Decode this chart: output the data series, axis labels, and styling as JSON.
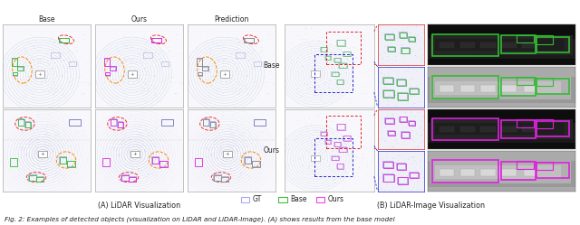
{
  "fig_width": 6.4,
  "fig_height": 2.49,
  "dpi": 100,
  "background_color": "#ffffff",
  "panel_A_title": "(A) LiDAR Visualization",
  "panel_B_title": "(B) LiDAR-Image Visualization",
  "panel_A_col_labels": [
    "Base",
    "Ours",
    "Prediction"
  ],
  "panel_B_row_labels": [
    "Base",
    "Ours"
  ],
  "legend_items": [
    "GT",
    "Base",
    "Ours"
  ],
  "legend_colors": [
    "#aaaaee",
    "#44bb44",
    "#ee44ee"
  ],
  "caption": "Fig. 2: Examples of detected objects (visualization on LiDAR and LiDAR-Image). (A) shows results from the base model",
  "caption_fontsize": 5.2,
  "label_fontsize": 5.5,
  "title_fontsize": 5.8,
  "legend_fontsize": 5.5,
  "lidar_bg_color": "#f8f8fc",
  "gt_color": "#aaaadd",
  "base_color": "#33bb33",
  "ours_color": "#dd22dd",
  "pred_color": "#888888",
  "red_ellipse": "#ee3333",
  "orange_ellipse": "#ff8800",
  "blue_box": "#3333cc",
  "red_dashed": "#dd2222",
  "blue_dashed": "#2222cc",
  "lidar_ring_color": "#99aacc",
  "lidar_center_color": "#4455aa",
  "camera_dark_bg": "#1a1a1a",
  "camera_gray_bg": "#888888"
}
